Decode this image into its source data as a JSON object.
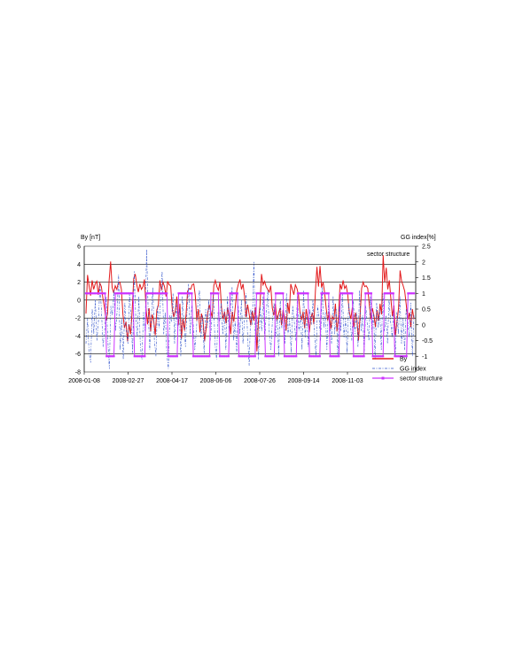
{
  "chart_data": {
    "type": "line",
    "ylabel_left": "By [nT]",
    "ylabel_right": "GG index[%]",
    "annotation": "sector structure",
    "x_tick_labels": [
      "2008-01-08",
      "2008-02-27",
      "2008-04-17",
      "2008-06-06",
      "2008-07-26",
      "2008-09-14",
      "2008-11-03"
    ],
    "x_range": [
      "2008-01-08",
      "2008-12-31"
    ],
    "y_left": {
      "ticks": [
        6,
        4,
        2,
        0,
        -2,
        -4,
        -6,
        -8
      ],
      "ylim": [
        -8,
        6
      ]
    },
    "y_right": {
      "ticks": [
        "2.5",
        "2",
        "1.5",
        "1",
        "0.5",
        "0",
        "-0.5",
        "-1"
      ],
      "ylim": [
        -1.5,
        2.5
      ]
    },
    "grid": true,
    "legend_position": "bottom-right",
    "series": [
      {
        "name": "By",
        "axis": "left",
        "color": "#e31a1c",
        "values": [
          -1.5,
          2.8,
          1.6,
          0.5,
          2.2,
          1.2,
          1.8,
          2.1,
          0.6,
          1.9,
          1.5,
          0.2,
          -0.8,
          -2.3,
          -1.5,
          2.1,
          4.3,
          1.4,
          0.8,
          1.6,
          1.2,
          1.9,
          2.0,
          1.2,
          -1.6,
          -3.1,
          -2.4,
          -4.6,
          -2.7,
          -3.8,
          -1.2,
          2.4,
          2.9,
          1.7,
          0.9,
          1.8,
          1.2,
          1.5,
          2.3,
          -0.9,
          -2.7,
          -0.9,
          -3.5,
          -1.6,
          -2.3,
          -3.9,
          -1.1,
          -0.6,
          2.2,
          1.1,
          2.0,
          1.5,
          0.4,
          2.1,
          1.7,
          1.6,
          -0.9,
          -1.9,
          -1.2,
          0.4,
          -2.8,
          -0.4,
          -4.3,
          -2.1,
          -3.4,
          -1.6,
          1.0,
          1.3,
          1.2,
          1.7,
          1.8,
          0.5,
          -2.3,
          -1.0,
          -3.6,
          -1.5,
          -2.2,
          -4.6,
          -3.2,
          -1.5,
          -0.5,
          -1.2,
          -2.0,
          1.6,
          2.2,
          1.5,
          1.1,
          2.0,
          -0.8,
          -2.1,
          -1.3,
          -2.6,
          -0.8,
          -1.9,
          -3.8,
          -1.3,
          -2.4,
          -0.7,
          1.1,
          1.8,
          2.3,
          1.2,
          1.8,
          0.4,
          -1.9,
          -0.5,
          -1.6,
          -2.8,
          -1.2,
          -2.3,
          -0.8,
          -5.7,
          -2.3,
          -0.6,
          2.9,
          1.7,
          2.1,
          1.5,
          1.2,
          0.9,
          1.6,
          -0.9,
          -1.7,
          -0.4,
          -2.3,
          -1.6,
          -0.9,
          -2.8,
          -1.1,
          -1.9,
          -3.4,
          -0.3,
          -1.5,
          1.8,
          1.2,
          0.6,
          1.7,
          1.3,
          0.6,
          -1.4,
          -2.2,
          -1.3,
          -3.1,
          -1.0,
          -2.1,
          -3.6,
          -2.0,
          -1.4,
          -2.7,
          1.0,
          3.7,
          1.5,
          3.8,
          1.4,
          2.0,
          0.8,
          -0.9,
          -2.3,
          -1.3,
          -3.2,
          -1.8,
          -2.2,
          -0.4,
          -3.5,
          -1.9,
          1.8,
          1.2,
          2.2,
          1.3,
          1.6,
          0.6,
          -1.3,
          -2.1,
          -0.8,
          -3.0,
          -1.4,
          -2.2,
          -4.5,
          -1.8,
          1.3,
          2.0,
          1.5,
          1.6,
          1.3,
          -0.5,
          -2.1,
          -0.9,
          -1.7,
          -3.0,
          -1.1,
          -2.3,
          -0.4,
          -1.6,
          5.0,
          2.0,
          3.6,
          1.2,
          2.2,
          0.2,
          -1.8,
          -0.6,
          -3.9,
          -2.4,
          -0.9,
          3.3,
          2.1,
          1.6,
          1.0,
          -0.5,
          -2.2,
          -1.4,
          -3.0,
          -1.0,
          -2.1
        ]
      },
      {
        "name": "GG index",
        "axis": "right",
        "color": "#3355cc",
        "values": [
          -0.6,
          0.2,
          -0.9,
          -1.2,
          0.5,
          -0.3,
          0.8,
          -0.5,
          0.1,
          1.3,
          0.4,
          -0.7,
          -0.2,
          0.9,
          -0.4,
          -1.4,
          0.6,
          0.3,
          1.1,
          -0.2,
          0.4,
          1.6,
          -0.8,
          0.2,
          -1.1,
          0.7,
          -0.3,
          -0.6,
          1.0,
          0.2,
          -0.9,
          1.7,
          0.3,
          -0.4,
          0.9,
          -0.7,
          -1.1,
          0.4,
          -0.2,
          2.4,
          0.5,
          -0.8,
          0.2,
          1.2,
          -0.5,
          -1.0,
          0.6,
          -0.1,
          0.8,
          1.7,
          -0.3,
          0.4,
          -0.9,
          -1.4,
          0.3,
          0.1,
          1.0,
          -0.6,
          0.7,
          -0.2,
          0.5,
          -1.0,
          0.9,
          0.1,
          -0.7,
          0.4,
          1.3,
          -0.3,
          0.6,
          0.0,
          -0.8,
          -0.2,
          0.7,
          1.1,
          -0.4,
          0.3,
          -0.9,
          0.5,
          -0.1,
          0.8,
          -0.5,
          0.2,
          1.0,
          -0.6,
          -1.1,
          0.4,
          0.1,
          0.7,
          -0.3,
          0.5,
          -0.8,
          0.9,
          -0.2,
          0.3,
          1.2,
          -0.5,
          0.1,
          -0.9,
          0.6,
          -0.3,
          0.8,
          -0.6,
          0.2,
          1.0,
          -0.4,
          -1.3,
          0.5,
          0.0,
          2.0,
          -0.7,
          0.3,
          -1.1,
          0.6,
          -0.2,
          0.9,
          -0.5,
          0.4,
          1.1,
          -0.3,
          -0.8,
          0.2,
          0.7,
          -0.4,
          0.3,
          -1.0,
          0.8,
          -0.1,
          0.5,
          -0.6,
          1.0,
          -0.3,
          0.2,
          -0.9,
          0.6,
          0.1,
          -0.5,
          0.9,
          -0.2,
          0.4,
          -0.8,
          1.1,
          -0.4,
          0.3,
          -0.7,
          0.5,
          0.0,
          0.8,
          -0.3,
          -1.0,
          0.6,
          0.2,
          -0.5,
          1.2,
          -0.1,
          0.4,
          -0.8,
          0.7,
          0.0,
          -0.6,
          0.9,
          -0.3,
          0.5,
          -1.0,
          0.6,
          -0.2,
          1.0,
          -0.4,
          0.2,
          -0.9,
          0.7,
          0.1,
          -0.5,
          0.8,
          -0.3,
          0.4,
          -0.7,
          1.1,
          -0.2,
          0.3,
          -0.9,
          0.6,
          0.0,
          -0.5,
          0.9,
          -0.3,
          0.4,
          -1.1,
          0.7,
          -0.1,
          0.5,
          -0.8,
          1.0,
          -0.2,
          0.3,
          -0.6,
          0.8,
          0.1,
          -0.4,
          0.6,
          -1.0,
          0.4,
          -0.3,
          0.9,
          -0.6,
          0.2,
          -0.8,
          0.5,
          0.1,
          -0.4,
          0.7,
          -1.0,
          0.3
        ]
      },
      {
        "name": "sector structure",
        "axis": "right",
        "color": "#cc33ff",
        "values": [
          1,
          1,
          1,
          1,
          1,
          1,
          1,
          1,
          1,
          1,
          1,
          1,
          1,
          1,
          -1,
          -1,
          -1,
          -1,
          -1,
          -1,
          1,
          1,
          1,
          1,
          1,
          1,
          1,
          1,
          1,
          1,
          1,
          1,
          1,
          -1,
          -1,
          -1,
          -1,
          -1,
          -1,
          -1,
          -1,
          1,
          1,
          1,
          1,
          1,
          1,
          1,
          1,
          1,
          1,
          1,
          1,
          1,
          1,
          1,
          -1,
          -1,
          -1,
          -1,
          -1,
          -1,
          -1,
          1,
          1,
          1,
          1,
          1,
          1,
          1,
          1,
          1,
          1,
          -1,
          -1,
          -1,
          -1,
          -1,
          -1,
          -1,
          -1,
          -1,
          -1,
          -1,
          -1,
          1,
          1,
          1,
          1,
          1,
          1,
          -1,
          -1,
          -1,
          -1,
          -1,
          -1,
          -1,
          1,
          1,
          1,
          1,
          1,
          1,
          -1,
          -1,
          -1,
          -1,
          -1,
          -1,
          -1,
          -1,
          -1,
          -1,
          -1,
          -1,
          1,
          1,
          1,
          1,
          1,
          1,
          -1,
          -1,
          -1,
          -1,
          -1,
          -1,
          -1,
          1,
          1,
          1,
          1,
          1,
          1,
          -1,
          -1,
          -1,
          -1,
          -1,
          -1,
          -1,
          -1,
          -1,
          1,
          1,
          1,
          1,
          1,
          1,
          1,
          1,
          -1,
          -1,
          -1,
          -1,
          -1,
          -1,
          -1,
          -1,
          1,
          1,
          1,
          1,
          1,
          1,
          -1,
          -1,
          -1,
          -1,
          -1,
          -1,
          -1,
          1,
          1,
          1,
          1,
          1,
          1,
          1,
          1,
          1,
          -1,
          -1,
          -1,
          -1,
          -1,
          -1,
          -1,
          -1,
          1,
          1,
          1,
          1,
          1,
          -1,
          -1,
          -1,
          -1,
          -1,
          -1,
          -1,
          -1,
          1,
          1,
          1,
          1,
          1,
          1,
          1,
          -1,
          -1,
          -1,
          -1,
          -1,
          -1,
          -1,
          -1,
          -1,
          1,
          1,
          1,
          1,
          1
        ]
      }
    ]
  }
}
